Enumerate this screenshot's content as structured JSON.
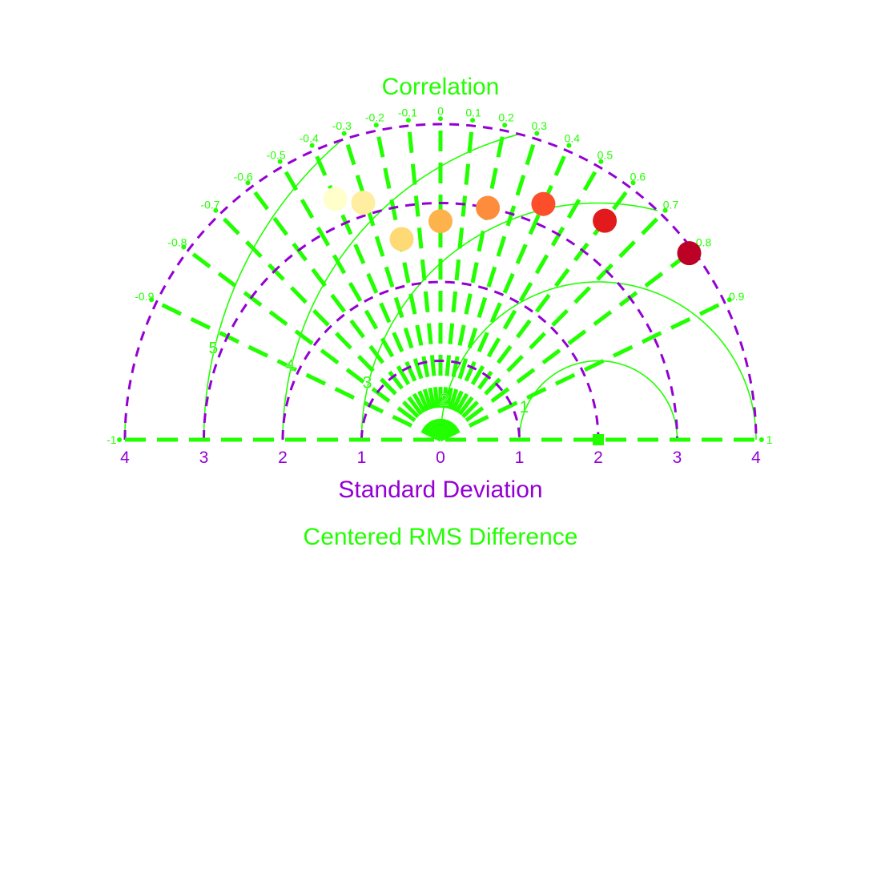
{
  "chart_data": {
    "type": "taylor",
    "title": "Correlation",
    "xlabel": "Standard Deviation",
    "rms_label": "Centered RMS Difference",
    "std_range": [
      0,
      4
    ],
    "corr_range": [
      -1,
      1
    ],
    "reference": {
      "std": 2
    },
    "std_tick_labels": [
      "4",
      "3",
      "2",
      "1",
      "0",
      "1",
      "2",
      "3",
      "4"
    ],
    "corr_tick_labels": [
      "-1",
      "-0.9",
      "-0.8",
      "-0.7",
      "-0.6",
      "-0.5",
      "-0.4",
      "-0.3",
      "-0.2",
      "-0.1",
      "0",
      "0.1",
      "0.2",
      "0.3",
      "0.4",
      "0.5",
      "0.6",
      "0.7",
      "0.8",
      "0.9",
      "1"
    ],
    "rms_tick_labels": [
      "1",
      "2",
      "3",
      "4",
      "5",
      "6"
    ],
    "points": [
      {
        "std": 3.33,
        "corr": -0.4,
        "color": "#ffffcc"
      },
      {
        "std": 3.16,
        "corr": -0.31,
        "color": "#ffeda0"
      },
      {
        "std": 2.59,
        "corr": -0.19,
        "color": "#fed976"
      },
      {
        "std": 2.77,
        "corr": 0.0,
        "color": "#feb24c"
      },
      {
        "std": 3.0,
        "corr": 0.2,
        "color": "#fd8d3c"
      },
      {
        "std": 3.26,
        "corr": 0.4,
        "color": "#fc4e2a"
      },
      {
        "std": 3.47,
        "corr": 0.6,
        "color": "#e31a1c"
      },
      {
        "std": 3.94,
        "corr": 0.8,
        "color": "#bd0026"
      }
    ],
    "colors": {
      "std_axis": "#9400d3",
      "rms_contours": "#22ff00",
      "corr_lines": "#22ff00",
      "title": "#22ff00",
      "xlabel": "#9400d3",
      "rms_label": "#22ff00"
    }
  }
}
